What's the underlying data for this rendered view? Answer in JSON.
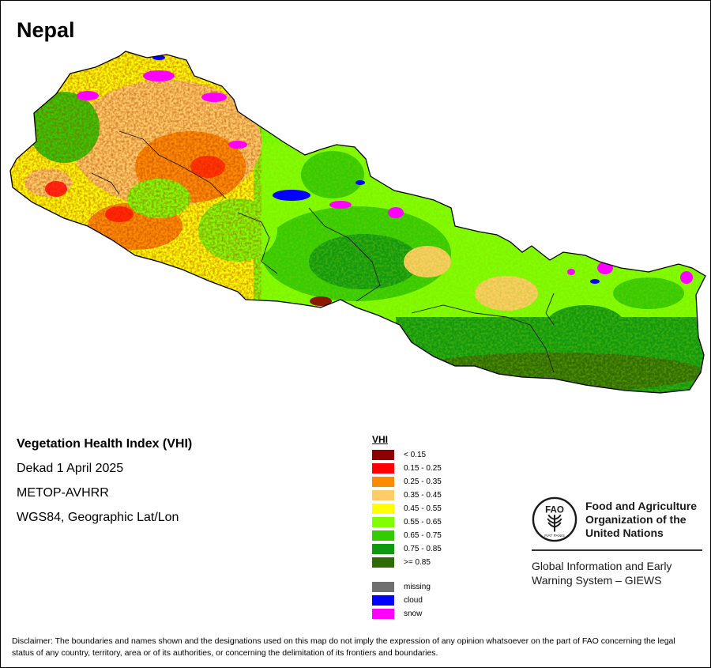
{
  "map": {
    "title": "Nepal"
  },
  "info": {
    "index_name": "Vegetation Health Index (VHI)",
    "period": "Dekad 1 April 2025",
    "sensor": "METOP-AVHRR",
    "projection": "WGS84, Geographic Lat/Lon"
  },
  "legend": {
    "title": "VHI",
    "classes": [
      {
        "label": "< 0.15",
        "color": "#8b0000"
      },
      {
        "label": "0.15 - 0.25",
        "color": "#ff0000"
      },
      {
        "label": "0.25 - 0.35",
        "color": "#ff8c00"
      },
      {
        "label": "0.35 - 0.45",
        "color": "#ffcc66"
      },
      {
        "label": "0.45 - 0.55",
        "color": "#ffff00"
      },
      {
        "label": "0.55 - 0.65",
        "color": "#80ff00"
      },
      {
        "label": "0.65 - 0.75",
        "color": "#33cc00"
      },
      {
        "label": "0.75 - 0.85",
        "color": "#109910"
      },
      {
        "label": ">= 0.85",
        "color": "#2e6b00"
      }
    ],
    "other": [
      {
        "label": "missing",
        "color": "#707070"
      },
      {
        "label": "cloud",
        "color": "#0000ff"
      },
      {
        "label": "snow",
        "color": "#ff00ff"
      }
    ]
  },
  "organization": {
    "name_line1": "Food and Agriculture",
    "name_line2": "Organization of the",
    "name_line3": "United Nations",
    "system_line1": "Global Information and Early",
    "system_line2": "Warning System – GIEWS",
    "emblem_text": "FAO",
    "motto": "FIAT PANIS"
  },
  "disclaimer": "Disclaimer: The boundaries and names shown and the designations used on this map do not imply the expression of any opinion whatsoever on the part of FAO concerning the legal status of any country, territory, area or of its authorities, or concerning the delimitation of its frontiers and boundaries."
}
